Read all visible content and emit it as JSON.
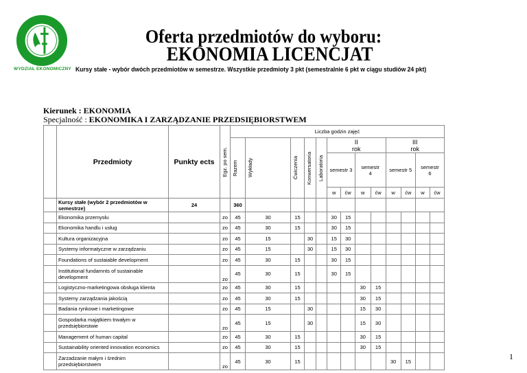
{
  "logo": {
    "ring_text_top": "UNIWERSYTET OPOLSKI",
    "ring_text_bottom": "UNIVERSITAS OPOLIENSIS",
    "color": "#1a9a2a"
  },
  "faculty": "WYDZIAŁ EKONOMICZNY",
  "title_line1": "Oferta przedmiotów do wyboru:",
  "title_line2": "EKONOMIA LICENCJAT",
  "subtitle": "Kursy stałe - wybór dwóch przedmiotów w semestrze. Wszystkie przedmioty 3 pkt (semestralnie 6 pkt w ciągu studiów 24 pkt)",
  "kierunek": "Kierunek : EKONOMIA",
  "specjalnosc_label": "Specjalność : ",
  "specjalnosc_value": "EKONOMIKA I ZARZĄDZANIE PRZEDSIĘBIORSTWEM",
  "table": {
    "liczba_godzin": "Liczba godzin zajęć",
    "przedmioty": "Przedmioty",
    "punkty": "Punkty ects",
    "egz": "Egz. po sem.",
    "razem": "Razem",
    "wyklady": "Wykłady",
    "cwiczenia": "Ćwiczenia",
    "konwersatoria": "Konwersatoria",
    "laboratoria": "Laboratoria",
    "rok2": "II rok",
    "rok3": "III rok",
    "sem3": "semestr 3",
    "sem4": "semestr 4",
    "sem5": "semestr 5",
    "sem6": "semestr 6",
    "w": "w",
    "cw": "ćw",
    "summary": {
      "name": "Kursy stałe (wybór 2 przedmiotów w semestrze)",
      "ects": "24",
      "razem": "360"
    },
    "rows": [
      {
        "name": "Ekonomika przemysłu",
        "egz": "zo",
        "razem": "45",
        "wyk": "30",
        "cw": "15",
        "konw": "",
        "s3w": "30",
        "s3c": "15",
        "s4w": "",
        "s4c": "",
        "s5w": "",
        "s5c": ""
      },
      {
        "name": "Ekonomika handlu i usług",
        "egz": "zo",
        "razem": "45",
        "wyk": "30",
        "cw": "15",
        "konw": "",
        "s3w": "30",
        "s3c": "15",
        "s4w": "",
        "s4c": "",
        "s5w": "",
        "s5c": ""
      },
      {
        "name": "Kultura organizacyjna",
        "egz": "zo",
        "razem": "45",
        "wyk": "15",
        "cw": "",
        "konw": "30",
        "s3w": "15",
        "s3c": "30",
        "s4w": "",
        "s4c": "",
        "s5w": "",
        "s5c": ""
      },
      {
        "name": "Systemy informatyczne w zarządzaniu",
        "egz": "zo",
        "razem": "45",
        "wyk": "15",
        "cw": "",
        "konw": "30",
        "s3w": "15",
        "s3c": "30",
        "s4w": "",
        "s4c": "",
        "s5w": "",
        "s5c": ""
      },
      {
        "name": "Foundations of sustaiable development",
        "egz": "zo",
        "razem": "45",
        "wyk": "30",
        "cw": "15",
        "konw": "",
        "s3w": "30",
        "s3c": "15",
        "s4w": "",
        "s4c": "",
        "s5w": "",
        "s5c": ""
      },
      {
        "name": "Institutional fundamnts of sustainable development",
        "egz": "zo",
        "razem": "45",
        "wyk": "30",
        "cw": "15",
        "konw": "",
        "s3w": "30",
        "s3c": "15",
        "s4w": "",
        "s4c": "",
        "s5w": "",
        "s5c": "",
        "tall": true
      },
      {
        "name": "Logistyczno-marketingowa obsługa klienta",
        "egz": "zo",
        "razem": "45",
        "wyk": "30",
        "cw": "15",
        "konw": "",
        "s3w": "",
        "s3c": "",
        "s4w": "30",
        "s4c": "15",
        "s5w": "",
        "s5c": ""
      },
      {
        "name": "Systemy zarządzania jakością",
        "egz": "zo",
        "razem": "45",
        "wyk": "30",
        "cw": "15",
        "konw": "",
        "s3w": "",
        "s3c": "",
        "s4w": "30",
        "s4c": "15",
        "s5w": "",
        "s5c": ""
      },
      {
        "name": "Badania rynkowe i marketingowe",
        "egz": "zo",
        "razem": "45",
        "wyk": "15",
        "cw": "",
        "konw": "30",
        "s3w": "",
        "s3c": "",
        "s4w": "15",
        "s4c": "30",
        "s5w": "",
        "s5c": ""
      },
      {
        "name": "Gospodarka majątkiem trwałym w przedsiębiorstwie",
        "egz": "zo",
        "razem": "45",
        "wyk": "15",
        "cw": "",
        "konw": "30",
        "s3w": "",
        "s3c": "",
        "s4w": "15",
        "s4c": "30",
        "s5w": "",
        "s5c": "",
        "tall": true
      },
      {
        "name": "Management of human capital",
        "egz": "zo",
        "razem": "45",
        "wyk": "30",
        "cw": "15",
        "konw": "",
        "s3w": "",
        "s3c": "",
        "s4w": "30",
        "s4c": "15",
        "s5w": "",
        "s5c": ""
      },
      {
        "name": "Sustainability oriented innovation economics",
        "egz": "zo",
        "razem": "45",
        "wyk": "30",
        "cw": "15",
        "konw": "",
        "s3w": "",
        "s3c": "",
        "s4w": "30",
        "s4c": "15",
        "s5w": "",
        "s5c": ""
      },
      {
        "name": "Zarzadzanie małym i średnim przedsiębiorstwem",
        "egz": "zo",
        "razem": "45",
        "wyk": "30",
        "cw": "15",
        "konw": "",
        "s3w": "",
        "s3c": "",
        "s4w": "",
        "s4c": "",
        "s5w": "30",
        "s5c": "15",
        "tall": true
      }
    ]
  },
  "page_number": "1"
}
